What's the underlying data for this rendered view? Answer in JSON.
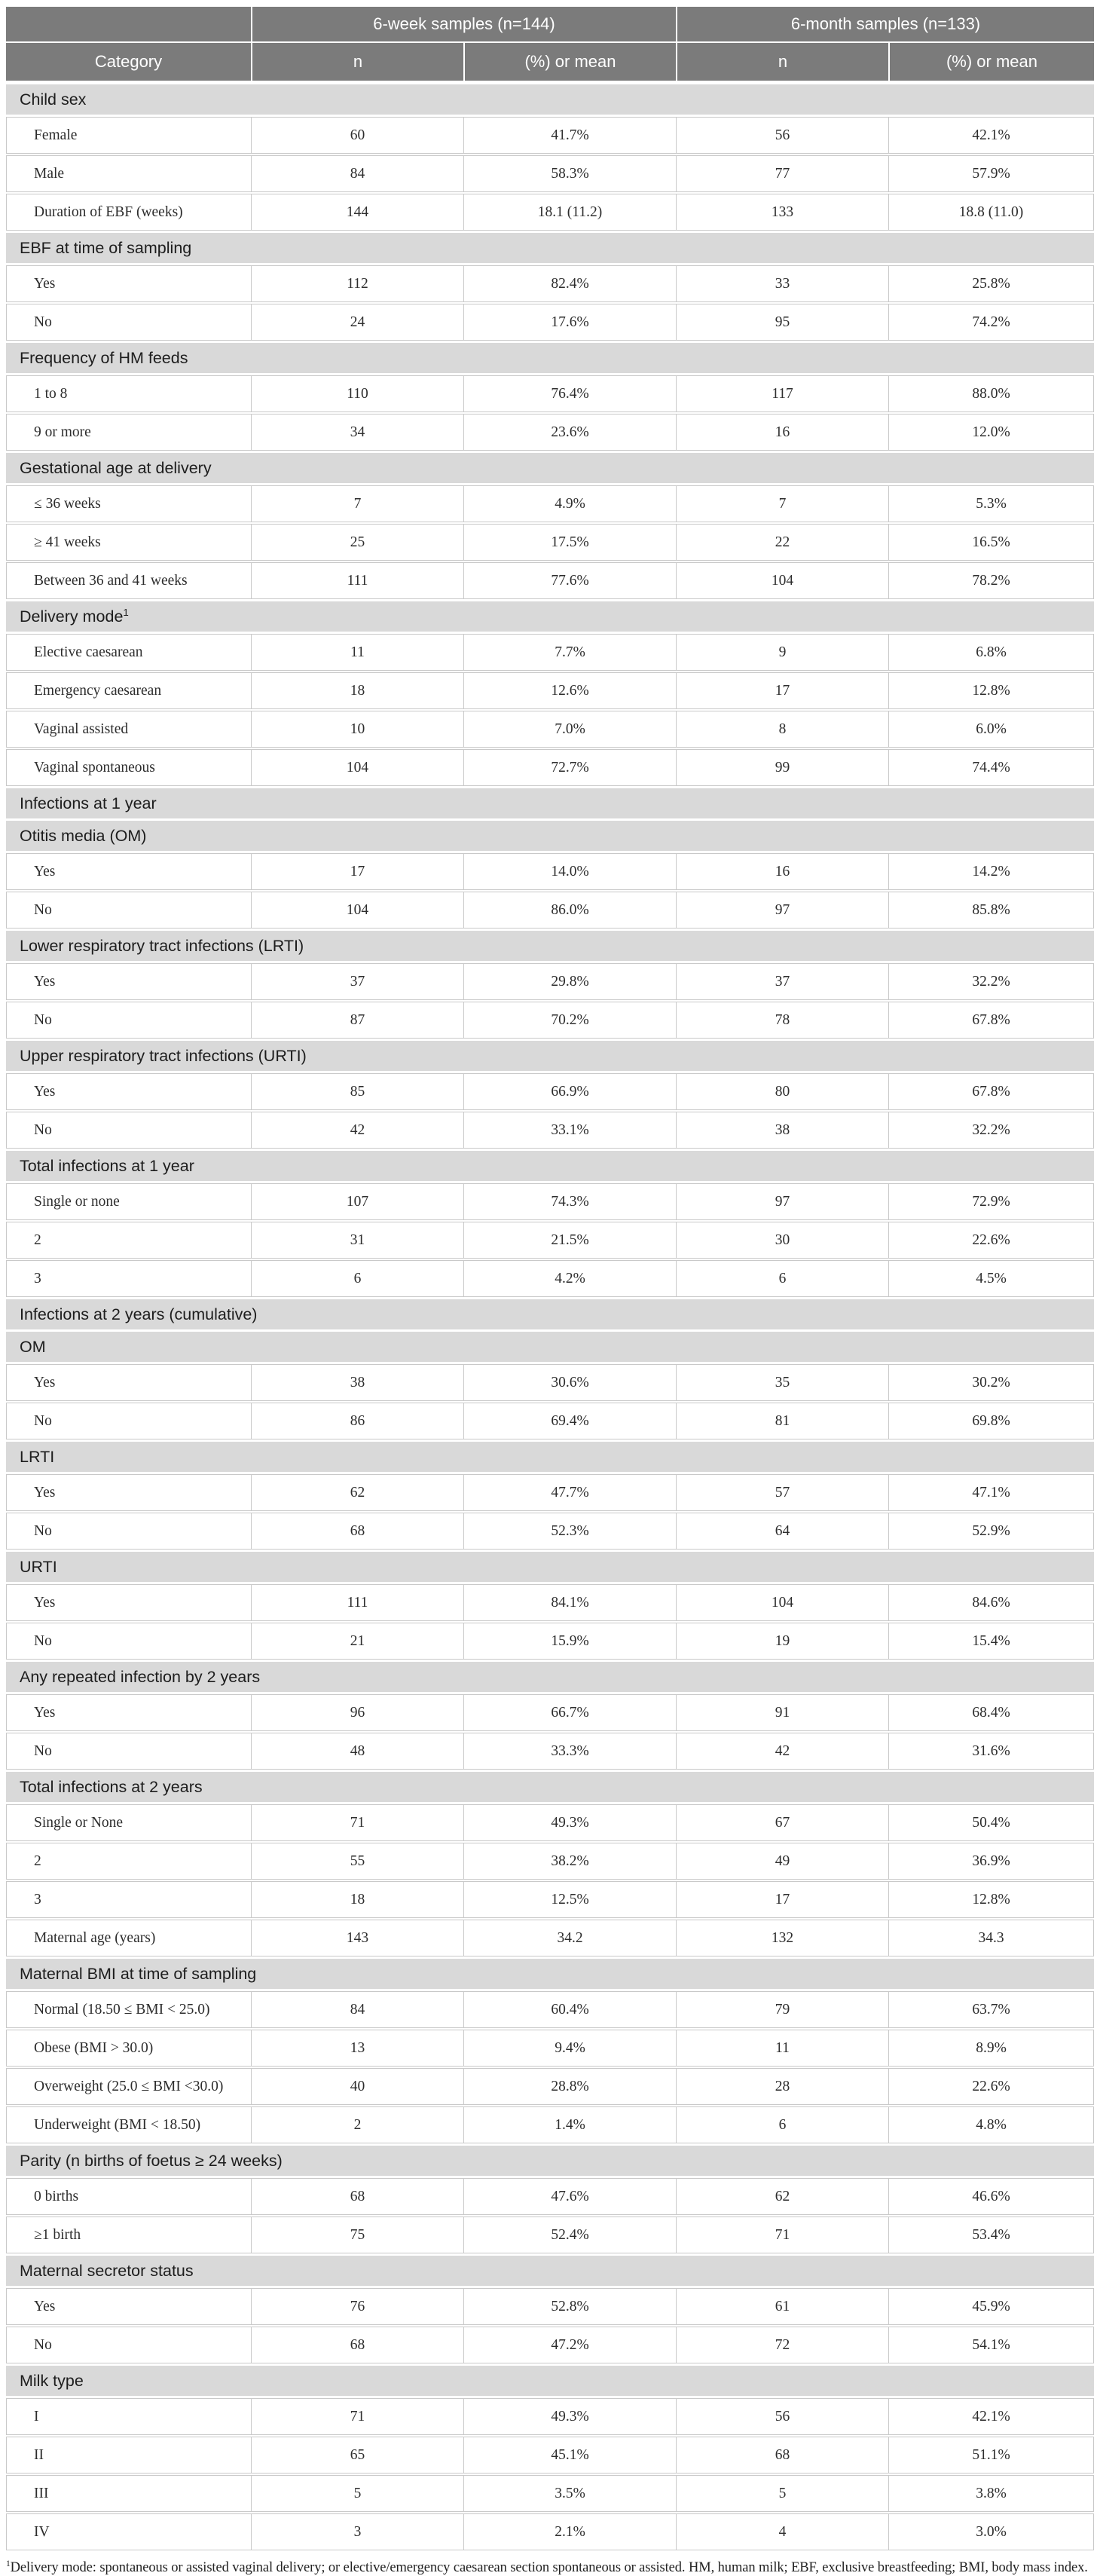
{
  "colors": {
    "header_bg": "#7b7b7b",
    "header_text": "#ffffff",
    "section_bg": "#d9d9d9",
    "row_border": "#c9c9c9",
    "body_text": "#2d2d2d"
  },
  "table": {
    "group_headers": [
      "6-week samples (n=144)",
      "6-month samples (n=133)"
    ],
    "column_headers": [
      "Category",
      "n",
      "(%) or mean",
      "n",
      "(%) or mean"
    ],
    "sections": [
      {
        "title": "Child sex",
        "rows": [
          {
            "label": "Female",
            "cells": [
              "60",
              "41.7%",
              "56",
              "42.1%"
            ]
          },
          {
            "label": "Male",
            "cells": [
              "84",
              "58.3%",
              "77",
              "57.9%"
            ]
          },
          {
            "label": "Duration of EBF (weeks)",
            "cells": [
              "144",
              "18.1 (11.2)",
              "133",
              "18.8 (11.0)"
            ]
          }
        ]
      },
      {
        "title": "EBF at time of sampling",
        "rows": [
          {
            "label": "Yes",
            "cells": [
              "112",
              "82.4%",
              "33",
              "25.8%"
            ]
          },
          {
            "label": "No",
            "cells": [
              "24",
              "17.6%",
              "95",
              "74.2%"
            ]
          }
        ]
      },
      {
        "title": "Frequency of HM feeds",
        "rows": [
          {
            "label": "1 to 8",
            "cells": [
              "110",
              "76.4%",
              "117",
              "88.0%"
            ]
          },
          {
            "label": "9 or more",
            "cells": [
              "34",
              "23.6%",
              "16",
              "12.0%"
            ]
          }
        ]
      },
      {
        "title": "Gestational age at delivery",
        "rows": [
          {
            "label": "≤ 36 weeks",
            "cells": [
              "7",
              "4.9%",
              "7",
              "5.3%"
            ]
          },
          {
            "label": "≥ 41 weeks",
            "cells": [
              "25",
              "17.5%",
              "22",
              "16.5%"
            ]
          },
          {
            "label": "Between 36 and 41 weeks",
            "cells": [
              "111",
              "77.6%",
              "104",
              "78.2%"
            ]
          }
        ]
      },
      {
        "title": "Delivery mode",
        "sup": "1",
        "rows": [
          {
            "label": "Elective caesarean",
            "cells": [
              "11",
              "7.7%",
              "9",
              "6.8%"
            ]
          },
          {
            "label": "Emergency caesarean",
            "cells": [
              "18",
              "12.6%",
              "17",
              "12.8%"
            ]
          },
          {
            "label": "Vaginal assisted",
            "cells": [
              "10",
              "7.0%",
              "8",
              "6.0%"
            ]
          },
          {
            "label": "Vaginal spontaneous",
            "cells": [
              "104",
              "72.7%",
              "99",
              "74.4%"
            ]
          }
        ]
      },
      {
        "title": "Infections at 1 year",
        "rows": []
      },
      {
        "title": "Otitis media (OM)",
        "rows": [
          {
            "label": "Yes",
            "cells": [
              "17",
              "14.0%",
              "16",
              "14.2%"
            ]
          },
          {
            "label": "No",
            "cells": [
              "104",
              "86.0%",
              "97",
              "85.8%"
            ]
          }
        ]
      },
      {
        "title": "Lower respiratory tract infections (LRTI)",
        "rows": [
          {
            "label": "Yes",
            "cells": [
              "37",
              "29.8%",
              "37",
              "32.2%"
            ]
          },
          {
            "label": "No",
            "cells": [
              "87",
              "70.2%",
              "78",
              "67.8%"
            ]
          }
        ]
      },
      {
        "title": "Upper respiratory tract infections (URTI)",
        "rows": [
          {
            "label": "Yes",
            "cells": [
              "85",
              "66.9%",
              "80",
              "67.8%"
            ]
          },
          {
            "label": "No",
            "cells": [
              "42",
              "33.1%",
              "38",
              "32.2%"
            ]
          }
        ]
      },
      {
        "title": "Total infections at 1 year",
        "rows": [
          {
            "label": "Single or none",
            "cells": [
              "107",
              "74.3%",
              "97",
              "72.9%"
            ]
          },
          {
            "label": "2",
            "cells": [
              "31",
              "21.5%",
              "30",
              "22.6%"
            ]
          },
          {
            "label": "3",
            "cells": [
              "6",
              "4.2%",
              "6",
              "4.5%"
            ]
          }
        ]
      },
      {
        "title": "Infections at 2 years (cumulative)",
        "rows": []
      },
      {
        "title": "OM",
        "rows": [
          {
            "label": "Yes",
            "cells": [
              "38",
              "30.6%",
              "35",
              "30.2%"
            ]
          },
          {
            "label": "No",
            "cells": [
              "86",
              "69.4%",
              "81",
              "69.8%"
            ]
          }
        ]
      },
      {
        "title": "LRTI",
        "rows": [
          {
            "label": "Yes",
            "cells": [
              "62",
              "47.7%",
              "57",
              "47.1%"
            ]
          },
          {
            "label": "No",
            "cells": [
              "68",
              "52.3%",
              "64",
              "52.9%"
            ]
          }
        ]
      },
      {
        "title": "URTI",
        "rows": [
          {
            "label": "Yes",
            "cells": [
              "111",
              "84.1%",
              "104",
              "84.6%"
            ]
          },
          {
            "label": "No",
            "cells": [
              "21",
              "15.9%",
              "19",
              "15.4%"
            ]
          }
        ]
      },
      {
        "title": "Any repeated infection by 2 years",
        "rows": [
          {
            "label": "Yes",
            "cells": [
              "96",
              "66.7%",
              "91",
              "68.4%"
            ]
          },
          {
            "label": "No",
            "cells": [
              "48",
              "33.3%",
              "42",
              "31.6%"
            ]
          }
        ]
      },
      {
        "title": "Total infections at 2 years",
        "rows": [
          {
            "label": "Single or None",
            "cells": [
              "71",
              "49.3%",
              "67",
              "50.4%"
            ]
          },
          {
            "label": "2",
            "cells": [
              "55",
              "38.2%",
              "49",
              "36.9%"
            ]
          },
          {
            "label": "3",
            "cells": [
              "18",
              "12.5%",
              "17",
              "12.8%"
            ]
          },
          {
            "label": "Maternal age (years)",
            "cells": [
              "143",
              "34.2",
              "132",
              "34.3"
            ]
          }
        ]
      },
      {
        "title": "Maternal BMI at time of sampling",
        "rows": [
          {
            "label": "Normal (18.50 ≤ BMI < 25.0)",
            "cells": [
              "84",
              "60.4%",
              "79",
              "63.7%"
            ]
          },
          {
            "label": "Obese (BMI > 30.0)",
            "cells": [
              "13",
              "9.4%",
              "11",
              "8.9%"
            ]
          },
          {
            "label": "Overweight (25.0 ≤ BMI <30.0)",
            "cells": [
              "40",
              "28.8%",
              "28",
              "22.6%"
            ]
          },
          {
            "label": "Underweight (BMI < 18.50)",
            "cells": [
              "2",
              "1.4%",
              "6",
              "4.8%"
            ]
          }
        ]
      },
      {
        "title": "Parity (n births of foetus ≥ 24 weeks)",
        "rows": [
          {
            "label": "0 births",
            "cells": [
              "68",
              "47.6%",
              "62",
              "46.6%"
            ]
          },
          {
            "label": "≥1 birth",
            "cells": [
              "75",
              "52.4%",
              "71",
              "53.4%"
            ]
          }
        ]
      },
      {
        "title": "Maternal secretor status",
        "rows": [
          {
            "label": "Yes",
            "cells": [
              "76",
              "52.8%",
              "61",
              "45.9%"
            ]
          },
          {
            "label": "No",
            "cells": [
              "68",
              "47.2%",
              "72",
              "54.1%"
            ]
          }
        ]
      },
      {
        "title": "Milk type",
        "rows": [
          {
            "label": "I",
            "cells": [
              "71",
              "49.3%",
              "56",
              "42.1%"
            ]
          },
          {
            "label": "II",
            "cells": [
              "65",
              "45.1%",
              "68",
              "51.1%"
            ]
          },
          {
            "label": "III",
            "cells": [
              "5",
              "3.5%",
              "5",
              "3.8%"
            ]
          },
          {
            "label": "IV",
            "cells": [
              "3",
              "2.1%",
              "4",
              "3.0%"
            ]
          }
        ]
      }
    ],
    "footnote": {
      "sup": "1",
      "text": "Delivery mode: spontaneous or assisted vaginal delivery; or elective/emergency caesarean section spontaneous or assisted. HM, human milk; EBF, exclusive breastfeeding; BMI, body mass index."
    }
  }
}
